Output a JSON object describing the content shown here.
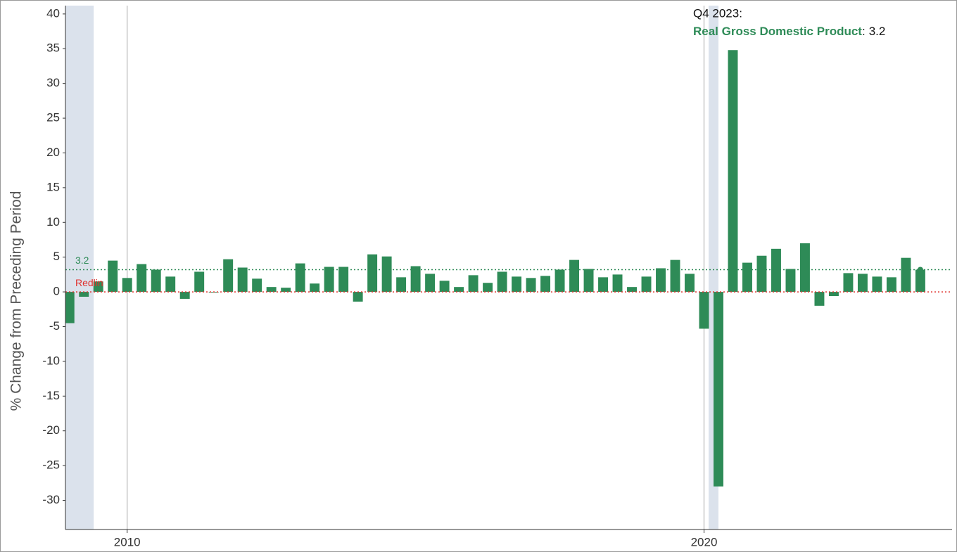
{
  "chart_data": {
    "type": "bar",
    "series": [
      {
        "name": "Real Gross Domestic Product",
        "color": "#2e8b57",
        "values": [
          -4.5,
          -0.7,
          1.5,
          4.5,
          2.0,
          4.0,
          3.2,
          2.2,
          -1.0,
          2.9,
          -0.1,
          4.7,
          3.5,
          1.9,
          0.7,
          0.6,
          4.1,
          1.2,
          3.6,
          3.6,
          -1.4,
          5.4,
          5.1,
          2.1,
          3.7,
          2.6,
          1.6,
          0.7,
          2.4,
          1.3,
          2.9,
          2.2,
          2.0,
          2.3,
          3.2,
          4.6,
          3.3,
          2.1,
          2.5,
          0.7,
          2.2,
          3.4,
          4.6,
          2.6,
          -5.3,
          -28.0,
          34.8,
          4.2,
          5.2,
          6.2,
          3.3,
          7.0,
          -2.0,
          -0.6,
          2.7,
          2.6,
          2.2,
          2.1,
          4.9,
          3.2
        ]
      }
    ],
    "x": [
      2009,
      2009.25,
      2009.5,
      2009.75,
      2010,
      2010.25,
      2010.5,
      2010.75,
      2011,
      2011.25,
      2011.5,
      2011.75,
      2012,
      2012.25,
      2012.5,
      2012.75,
      2013,
      2013.25,
      2013.5,
      2013.75,
      2014,
      2014.25,
      2014.5,
      2014.75,
      2015,
      2015.25,
      2015.5,
      2015.75,
      2016,
      2016.25,
      2016.5,
      2016.75,
      2017,
      2017.25,
      2017.5,
      2017.75,
      2018,
      2018.25,
      2018.5,
      2018.75,
      2019,
      2019.25,
      2019.5,
      2019.75,
      2020,
      2020.25,
      2020.5,
      2020.75,
      2021,
      2021.25,
      2021.5,
      2021.75,
      2022,
      2022.25,
      2022.5,
      2022.75,
      2023,
      2023.25,
      2023.5,
      2023.75
    ],
    "xlim": [
      2008.93,
      2024.3
    ],
    "xticks": [
      2010,
      2020
    ],
    "ylim": [
      -34.2,
      41.2
    ],
    "yticks": [
      -30,
      -25,
      -20,
      -15,
      -10,
      -5,
      0,
      5,
      10,
      15,
      20,
      25,
      30,
      35,
      40
    ],
    "y_label": "% Change from Preceding Period",
    "x_grid": true,
    "shading": {
      "color": "#dbe2ec",
      "periods": [
        [
          2007.92,
          2009.42
        ],
        [
          2020.08,
          2020.25
        ]
      ]
    },
    "reference_lines": [
      {
        "value": 3.2,
        "label": "3.2",
        "color": "#2e8b57"
      },
      {
        "value": 0,
        "label": "Redlin",
        "color": "#e0302c"
      }
    ],
    "tooltip": {
      "date": "Q4 2023:",
      "separator": ":"
    }
  }
}
